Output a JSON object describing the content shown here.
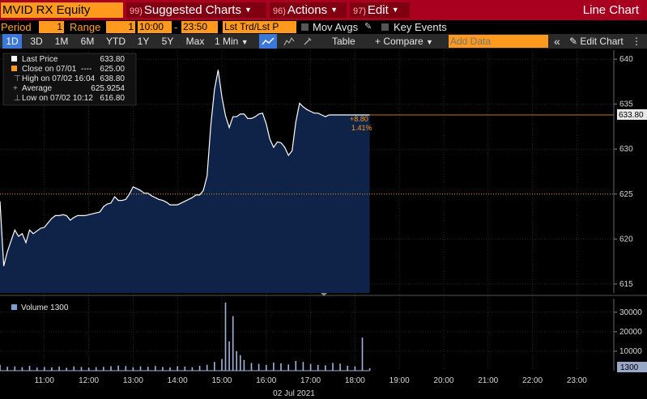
{
  "top_bar": {
    "ticker": "MVID RX Equity",
    "menus": [
      {
        "num": "99)",
        "label": "Suggested Charts"
      },
      {
        "num": "96)",
        "label": "Actions"
      },
      {
        "num": "97)",
        "label": "Edit"
      }
    ],
    "title": "Line Chart"
  },
  "settings_row": {
    "period_label": "Period",
    "period_value": "1",
    "range_label": "Range",
    "range_value": "1",
    "time_start": "10:00",
    "time_sep": "-",
    "time_end": "23:50",
    "price_mode": "Lst Trd/Lst P",
    "mov_avgs": "Mov Avgs",
    "key_events": "Key Events"
  },
  "period_tabs": {
    "tabs": [
      "1D",
      "3D",
      "1M",
      "6M",
      "YTD",
      "1Y",
      "5Y",
      "Max"
    ],
    "active": "1D",
    "interval": "1 Min",
    "table": "Table",
    "compare": "+ Compare",
    "add_data_placeholder": "Add Data",
    "edit_chart": "Edit Chart"
  },
  "legend": {
    "items": [
      {
        "label": "Last Price",
        "value": "633.80",
        "color": "#ffffff"
      },
      {
        "label": "Close on 07/01",
        "dashes": "----",
        "value": "625.00",
        "color": "#ff9a1f"
      },
      {
        "label": "High on 07/02 16:04",
        "value": "638.80",
        "color": "#cccccc"
      },
      {
        "label": "Average",
        "value": "625.9254",
        "color": "#cccccc"
      },
      {
        "label": "Low on 07/02 10:12",
        "value": "616.80",
        "color": "#cccccc"
      }
    ]
  },
  "annotations": {
    "change": "+8.80",
    "change_pct": "1.41%",
    "last_price_tag": "633.80",
    "volume_tag": "1300"
  },
  "volume_legend": "Volume 1300",
  "date_label": "02 Jul 2021",
  "colors": {
    "area_fill": "#0e2347",
    "price_line": "#ffffff",
    "close_line": "#ff9a1f",
    "grid": "#3a3a3a",
    "accent_red": "#a8001e",
    "accent_orange": "#ff9a1f"
  },
  "chart_data": {
    "type": "line",
    "title": "",
    "xlabel": "02 Jul 2021",
    "ylabel": "",
    "price": {
      "ylim": [
        614,
        641
      ],
      "yticks": [
        615,
        620,
        625,
        630,
        635,
        640
      ],
      "reference_close": 625.0,
      "last_price": 633.8,
      "x_minutes": [
        600,
        605,
        610,
        615,
        620,
        625,
        630,
        635,
        640,
        645,
        650,
        655,
        660,
        665,
        670,
        675,
        680,
        685,
        690,
        695,
        700,
        705,
        710,
        715,
        720,
        725,
        730,
        735,
        740,
        745,
        750,
        755,
        760,
        765,
        770,
        775,
        780,
        785,
        790,
        795,
        800,
        805,
        810,
        815,
        820,
        825,
        830,
        835,
        840,
        845,
        850,
        855,
        860,
        865,
        870,
        875,
        880,
        885,
        890,
        895,
        900,
        905,
        910,
        915,
        920,
        925,
        930,
        935,
        940,
        945,
        950,
        955,
        960,
        965,
        970,
        975,
        980,
        985,
        990,
        995,
        1000,
        1005,
        1010,
        1015,
        1020,
        1025,
        1030,
        1035,
        1040,
        1045,
        1050,
        1055,
        1060,
        1065,
        1070,
        1075,
        1080,
        1085,
        1090,
        1095,
        1100
      ],
      "values": [
        624.2,
        617.0,
        618.6,
        619.8,
        621.0,
        620.3,
        620.6,
        619.6,
        621.0,
        620.6,
        620.9,
        621.2,
        621.3,
        621.8,
        622.3,
        622.6,
        622.6,
        622.7,
        622.6,
        622.1,
        622.4,
        622.6,
        622.6,
        622.6,
        622.7,
        622.8,
        622.9,
        623.0,
        623.6,
        623.9,
        624.0,
        624.7,
        624.3,
        624.3,
        624.4,
        625.0,
        625.8,
        625.6,
        625.4,
        625.1,
        625.1,
        624.8,
        624.6,
        624.4,
        624.3,
        624.1,
        623.8,
        623.8,
        623.8,
        624.0,
        624.2,
        624.4,
        624.6,
        624.9,
        624.9,
        625.4,
        627.0,
        632.6,
        636.6,
        638.8,
        635.8,
        633.7,
        632.4,
        633.6,
        633.6,
        633.9,
        633.9,
        633.4,
        633.4,
        633.6,
        633.9,
        634.0,
        632.8,
        631.1,
        630.2,
        630.8,
        630.7,
        630.2,
        629.3,
        629.8,
        633.0,
        635.1,
        634.7,
        634.4,
        634.2,
        634.0,
        634.0,
        633.8,
        633.6,
        633.8,
        633.8,
        633.8,
        633.8,
        633.8,
        633.8,
        633.8,
        633.8,
        633.8,
        633.8,
        633.8,
        633.8
      ]
    },
    "volume": {
      "ylim": [
        0,
        37000
      ],
      "yticks": [
        10000,
        20000,
        30000
      ],
      "x_minutes": [
        600,
        610,
        620,
        630,
        640,
        650,
        660,
        670,
        680,
        690,
        700,
        710,
        720,
        730,
        740,
        750,
        760,
        770,
        780,
        790,
        800,
        810,
        820,
        830,
        840,
        850,
        860,
        870,
        880,
        890,
        900,
        905,
        910,
        915,
        920,
        925,
        930,
        940,
        950,
        960,
        970,
        980,
        990,
        1000,
        1010,
        1020,
        1030,
        1040,
        1050,
        1060,
        1070,
        1080,
        1090,
        1100
      ],
      "values": [
        3000,
        2000,
        2200,
        1800,
        2500,
        1600,
        1900,
        1700,
        2100,
        1500,
        2200,
        1900,
        1600,
        1800,
        2000,
        2300,
        2600,
        2400,
        1800,
        2200,
        2000,
        2400,
        1900,
        1700,
        2300,
        2100,
        1800,
        2500,
        3000,
        4500,
        6000,
        35000,
        15000,
        28000,
        10000,
        8000,
        5500,
        4000,
        3500,
        3000,
        4200,
        3800,
        3200,
        5000,
        4500,
        3500,
        3000,
        2800,
        4000,
        3600,
        2500,
        2200,
        17000,
        1300
      ]
    },
    "x_ticks": [
      "11:00",
      "12:00",
      "13:00",
      "14:00",
      "15:00",
      "16:00",
      "17:00",
      "18:00",
      "19:00",
      "20:00",
      "21:00",
      "22:00",
      "23:00"
    ],
    "x_range_minutes": [
      600,
      1430
    ]
  }
}
